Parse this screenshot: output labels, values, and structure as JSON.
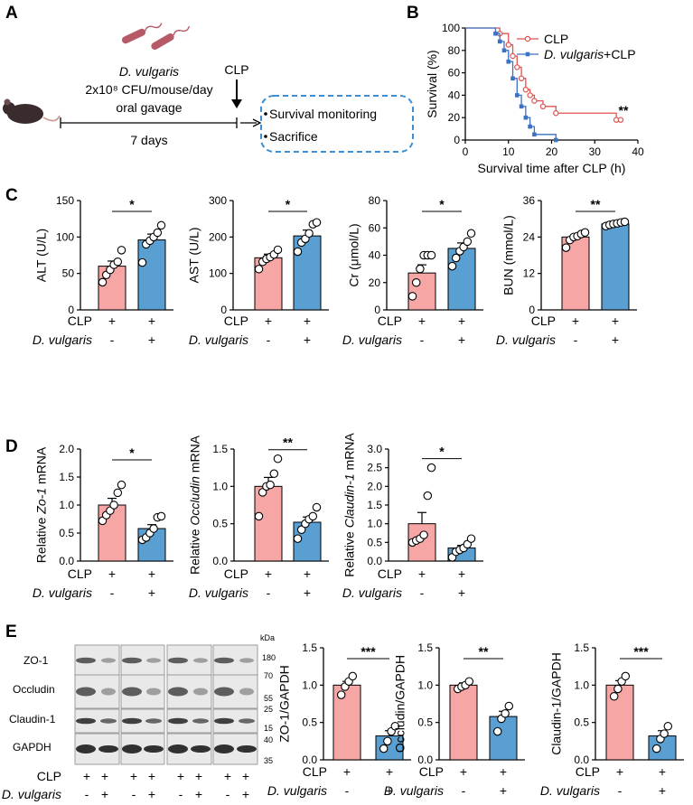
{
  "panel_letters": {
    "a": "A",
    "b": "B",
    "c": "C",
    "d": "D",
    "e": "E"
  },
  "colors": {
    "clp": "#f7a6a6",
    "dv": "#5a9fd1",
    "clp_line": "#e0524f",
    "dv_line": "#3b72c4",
    "box": "#3a8fd6"
  },
  "schematic": {
    "strain": "D. vulgaris",
    "dose_line": "2x10⁸ CFU/mouse/day",
    "route": "oral gavage",
    "duration": "7 days",
    "clp": "CLP",
    "outcomes": [
      "Survival monitoring",
      "Sacrifice"
    ]
  },
  "group_labels": {
    "clp": "CLP",
    "dv": "D. vulgaris",
    "plus": "+",
    "minus": "-"
  },
  "western": {
    "kda_label": "kDa",
    "bands": [
      "ZO-1",
      "Occludin",
      "Claudin-1",
      "GAPDH"
    ],
    "markers": [
      "180",
      "70",
      "55",
      "25",
      "15",
      "40",
      "35"
    ]
  },
  "chart_data": [
    {
      "id": "survival",
      "type": "line",
      "title": "",
      "xlabel": "Survival time after CLP (h)",
      "ylabel": "Survival (%)",
      "xlim": [
        0,
        40
      ],
      "ylim": [
        0,
        100
      ],
      "xticks": [
        "0",
        "10",
        "20",
        "30",
        "40"
      ],
      "yticks": [
        "0",
        "20",
        "40",
        "60",
        "80",
        "100"
      ],
      "series": [
        {
          "name": "CLP",
          "x": [
            0,
            8,
            10,
            11,
            12,
            13,
            14,
            15,
            16,
            18,
            21,
            35,
            36
          ],
          "y": [
            100,
            95,
            85,
            75,
            65,
            55,
            45,
            40,
            35,
            30,
            24,
            18,
            18
          ]
        },
        {
          "name": "+CLP",
          "legend_italic": "D. vulgaris",
          "x": [
            0,
            7,
            8,
            9,
            10,
            11,
            12,
            13,
            14,
            15,
            16,
            21
          ],
          "y": [
            100,
            95,
            88,
            80,
            70,
            55,
            40,
            30,
            20,
            12,
            5,
            0
          ]
        }
      ],
      "annotation": "**"
    },
    {
      "id": "alt",
      "type": "bar",
      "ylabel": "ALT (U/L)",
      "ylim": [
        0,
        150
      ],
      "yticks": [
        "0",
        "50",
        "100",
        "150"
      ],
      "categories": [
        "CLP",
        "D. vulgaris+CLP"
      ],
      "values": [
        60,
        96
      ],
      "sem": [
        7,
        8
      ],
      "points": [
        [
          38,
          48,
          55,
          62,
          66,
          82
        ],
        [
          65,
          90,
          95,
          100,
          106,
          116
        ]
      ],
      "significance": "*"
    },
    {
      "id": "ast",
      "type": "bar",
      "ylabel": "AST (U/L)",
      "ylim": [
        0,
        300
      ],
      "yticks": [
        "0",
        "100",
        "200",
        "300"
      ],
      "categories": [
        "CLP",
        "D. vulgaris+CLP"
      ],
      "values": [
        143,
        203
      ],
      "sem": [
        10,
        16
      ],
      "points": [
        [
          112,
          132,
          140,
          145,
          152,
          165
        ],
        [
          160,
          185,
          195,
          210,
          235,
          240
        ]
      ],
      "significance": "*"
    },
    {
      "id": "cr",
      "type": "bar",
      "ylabel": "Cr (μmol/L)",
      "ylim": [
        0,
        80
      ],
      "yticks": [
        "0",
        "20",
        "40",
        "60",
        "80"
      ],
      "categories": [
        "CLP",
        "D. vulgaris+CLP"
      ],
      "values": [
        27,
        45
      ],
      "sem": [
        6,
        4
      ],
      "points": [
        [
          10,
          20,
          30,
          40,
          40,
          40
        ],
        [
          32,
          38,
          43,
          46,
          50,
          56
        ]
      ],
      "significance": "*"
    },
    {
      "id": "bun",
      "type": "bar",
      "ylabel": "BUN (mmol/L)",
      "ylim": [
        0,
        36
      ],
      "yticks": [
        "0",
        "12",
        "24",
        "36"
      ],
      "categories": [
        "CLP",
        "D. vulgaris+CLP"
      ],
      "values": [
        24,
        28.3
      ],
      "sem": [
        0.7,
        0.3
      ],
      "points": [
        [
          20.5,
          23,
          24,
          24.3,
          25,
          25.5
        ],
        [
          27.6,
          28,
          28.3,
          28.5,
          28.8,
          29
        ]
      ],
      "significance": "**"
    },
    {
      "id": "zo1_mrna",
      "type": "bar",
      "ylabel_pre": "Relative ",
      "ylabel_it": "Zo-1",
      "ylabel_post": " mRNA",
      "ylim": [
        0,
        2.0
      ],
      "yticks": [
        "0.0",
        "0.5",
        "1.0",
        "1.5",
        "2.0"
      ],
      "categories": [
        "CLP",
        "D. vulgaris+CLP"
      ],
      "values": [
        1.0,
        0.58
      ],
      "sem": [
        0.12,
        0.07
      ],
      "points": [
        [
          0.72,
          0.82,
          0.9,
          1.0,
          1.22,
          1.36
        ],
        [
          0.38,
          0.42,
          0.5,
          0.58,
          0.78,
          0.8
        ]
      ],
      "significance": "*"
    },
    {
      "id": "occludin_mrna",
      "type": "bar",
      "ylabel_pre": "Relative ",
      "ylabel_it": "Occludin",
      "ylabel_post": " mRNA",
      "ylim": [
        0,
        1.5
      ],
      "yticks": [
        "0.0",
        "0.5",
        "1.0",
        "1.5"
      ],
      "categories": [
        "CLP",
        "D. vulgaris+CLP"
      ],
      "values": [
        1.0,
        0.52
      ],
      "sem": [
        0.12,
        0.07
      ],
      "points": [
        [
          0.6,
          0.92,
          1.0,
          1.02,
          1.17,
          1.37
        ],
        [
          0.3,
          0.42,
          0.5,
          0.56,
          0.6,
          0.72
        ]
      ],
      "significance": "**"
    },
    {
      "id": "claudin1_mrna",
      "type": "bar",
      "ylabel_pre": "Relative ",
      "ylabel_it": "Claudin-1",
      "ylabel_post": " mRNA",
      "ylim": [
        0,
        3.0
      ],
      "yticks": [
        "0.0",
        "0.5",
        "1.0",
        "1.5",
        "2.0",
        "2.5",
        "3.0"
      ],
      "categories": [
        "CLP",
        "D. vulgaris+CLP"
      ],
      "values": [
        1.0,
        0.35
      ],
      "sem": [
        0.3,
        0.07
      ],
      "points": [
        [
          0.5,
          0.55,
          0.6,
          0.7,
          1.75,
          2.5
        ],
        [
          0.1,
          0.25,
          0.3,
          0.35,
          0.45,
          0.6
        ]
      ],
      "significance": "*"
    },
    {
      "id": "zo1_gapdh",
      "type": "bar",
      "ylabel": "ZO-1/GAPDH",
      "ylim": [
        0,
        1.5
      ],
      "yticks": [
        "0.0",
        "0.5",
        "1.0",
        "1.5"
      ],
      "categories": [
        "CLP",
        "D. vulgaris+CLP"
      ],
      "values": [
        1.0,
        0.32
      ],
      "sem": [
        0.05,
        0.07
      ],
      "points": [
        [
          0.87,
          0.98,
          1.05,
          1.12
        ],
        [
          0.15,
          0.25,
          0.38,
          0.45
        ]
      ],
      "significance": "***"
    },
    {
      "id": "occludin_gapdh",
      "type": "bar",
      "ylabel": "Occludin/GAPDH",
      "ylim": [
        0,
        1.5
      ],
      "yticks": [
        "0.0",
        "0.5",
        "1.0",
        "1.5"
      ],
      "categories": [
        "CLP",
        "D. vulgaris+CLP"
      ],
      "values": [
        1.0,
        0.58
      ],
      "sem": [
        0.03,
        0.07
      ],
      "points": [
        [
          0.95,
          0.98,
          1.0,
          1.05
        ],
        [
          0.38,
          0.55,
          0.62,
          0.72
        ]
      ],
      "significance": "**"
    },
    {
      "id": "claudin1_gapdh",
      "type": "bar",
      "ylabel": "Claudin-1/GAPDH",
      "ylim": [
        0,
        1.5
      ],
      "yticks": [
        "0.0",
        "0.5",
        "1.0",
        "1.5"
      ],
      "categories": [
        "CLP",
        "D. vulgaris+CLP"
      ],
      "values": [
        1.0,
        0.32
      ],
      "sem": [
        0.06,
        0.07
      ],
      "points": [
        [
          0.85,
          0.95,
          1.05,
          1.12
        ],
        [
          0.15,
          0.28,
          0.35,
          0.45
        ]
      ],
      "significance": "***"
    }
  ]
}
